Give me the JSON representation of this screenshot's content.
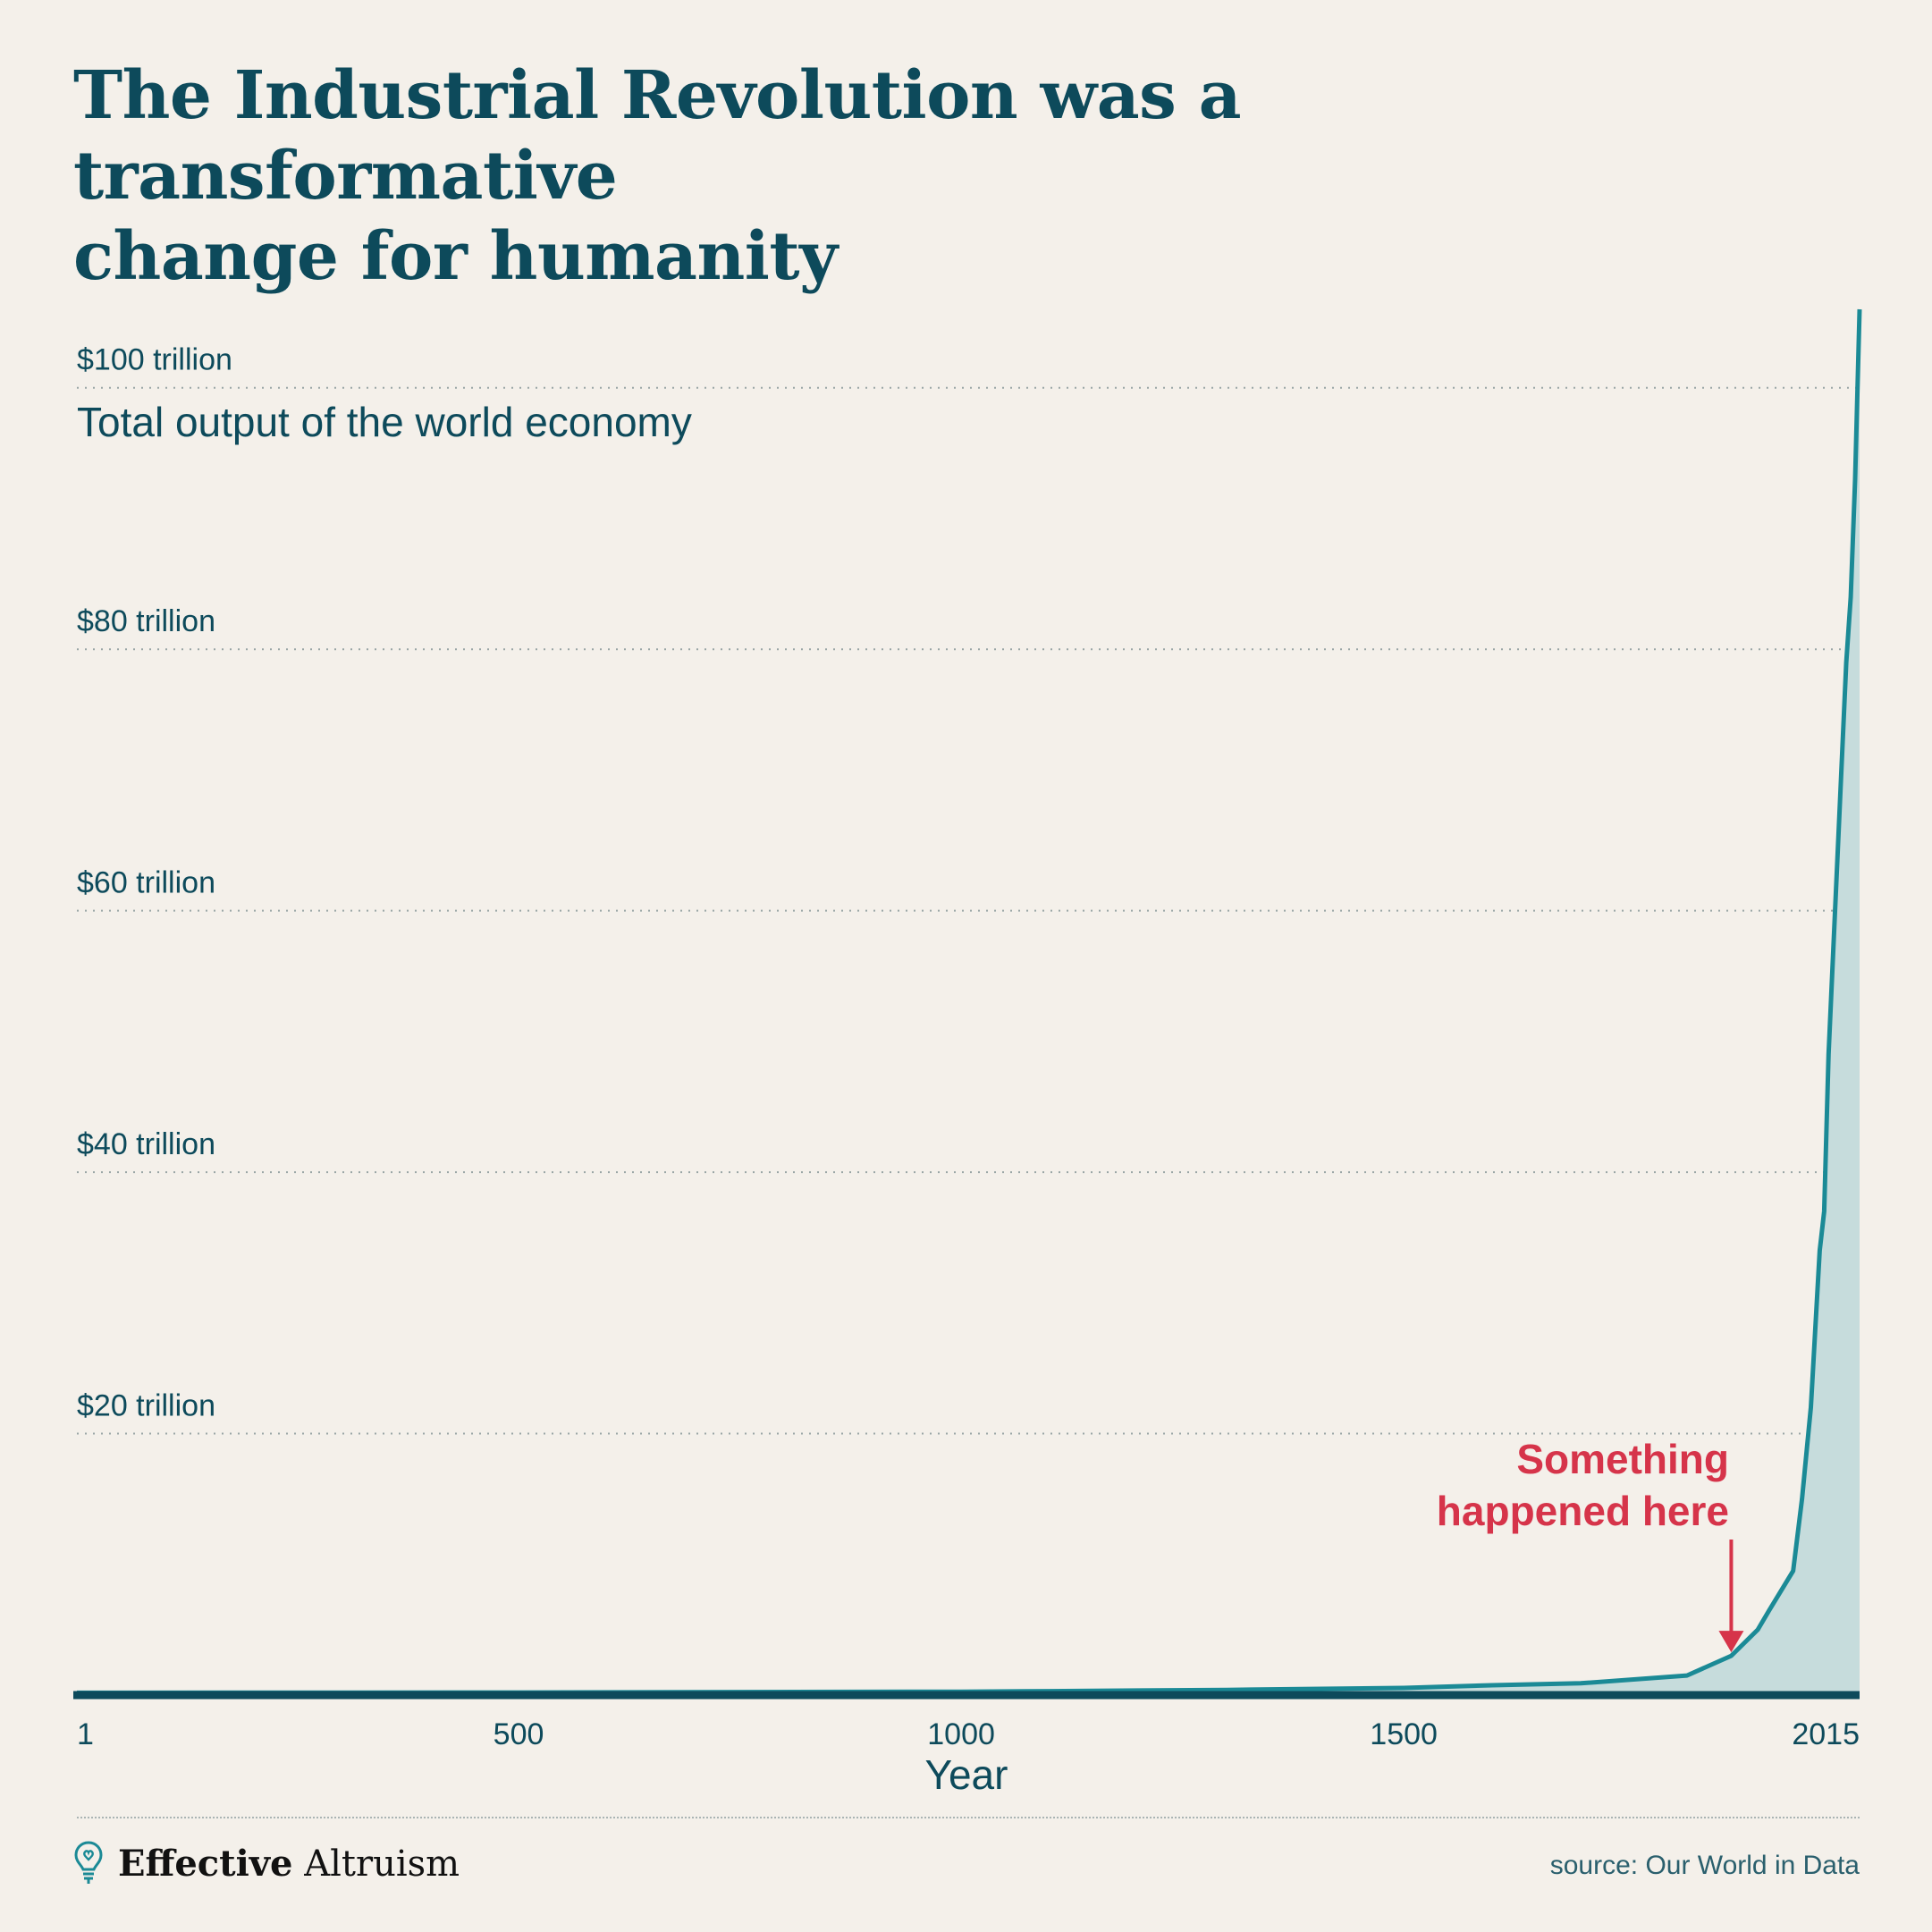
{
  "title": {
    "line1": "The Industrial Revolution was a transformative",
    "line2": "change for humanity"
  },
  "colors": {
    "background": "#f4f0ea",
    "title": "#0d4a5b",
    "line": "#1b8a96",
    "area": "#c6dcdc",
    "baseline": "#0d4a5b",
    "annotation": "#d6344a"
  },
  "chart_data": {
    "type": "area",
    "series_label": "Total output of the world economy",
    "xlabel": "Year",
    "ylabel": "",
    "x_ticks": [
      {
        "value": 1,
        "label": "1"
      },
      {
        "value": 500,
        "label": "500"
      },
      {
        "value": 1000,
        "label": "1000"
      },
      {
        "value": 1500,
        "label": "1500"
      },
      {
        "value": 2015,
        "label": "2015"
      }
    ],
    "y_ticks": [
      {
        "value": 20,
        "label": "$20 trillion"
      },
      {
        "value": 40,
        "label": "$40 trillion"
      },
      {
        "value": 60,
        "label": "$60 trillion"
      },
      {
        "value": 80,
        "label": "$80 trillion"
      },
      {
        "value": 100,
        "label": "$100 trillion"
      }
    ],
    "xlim": [
      1,
      2015
    ],
    "ylim": [
      0,
      106
    ],
    "grid": true,
    "series": [
      {
        "x": [
          1,
          500,
          1000,
          1100,
          1300,
          1500,
          1600,
          1700,
          1820,
          1870,
          1900,
          1913,
          1940,
          1950,
          1960,
          1970,
          1975,
          1980,
          1990,
          2000,
          2005,
          2010,
          2015
        ],
        "y": [
          0.18,
          0.2,
          0.26,
          0.3,
          0.4,
          0.55,
          0.75,
          0.9,
          1.5,
          3.0,
          5.0,
          6.5,
          9.5,
          15.0,
          22.0,
          34.0,
          37.0,
          49.0,
          64.0,
          79.0,
          84.0,
          93.0,
          106.0
        ]
      }
    ],
    "annotation": {
      "text_line1": "Something",
      "text_line2": "happened here",
      "x": 1870,
      "y": 3.0
    }
  },
  "footer": {
    "logo_bold": "Effective",
    "logo_regular": "Altruism",
    "source": "source: Our World in Data"
  }
}
